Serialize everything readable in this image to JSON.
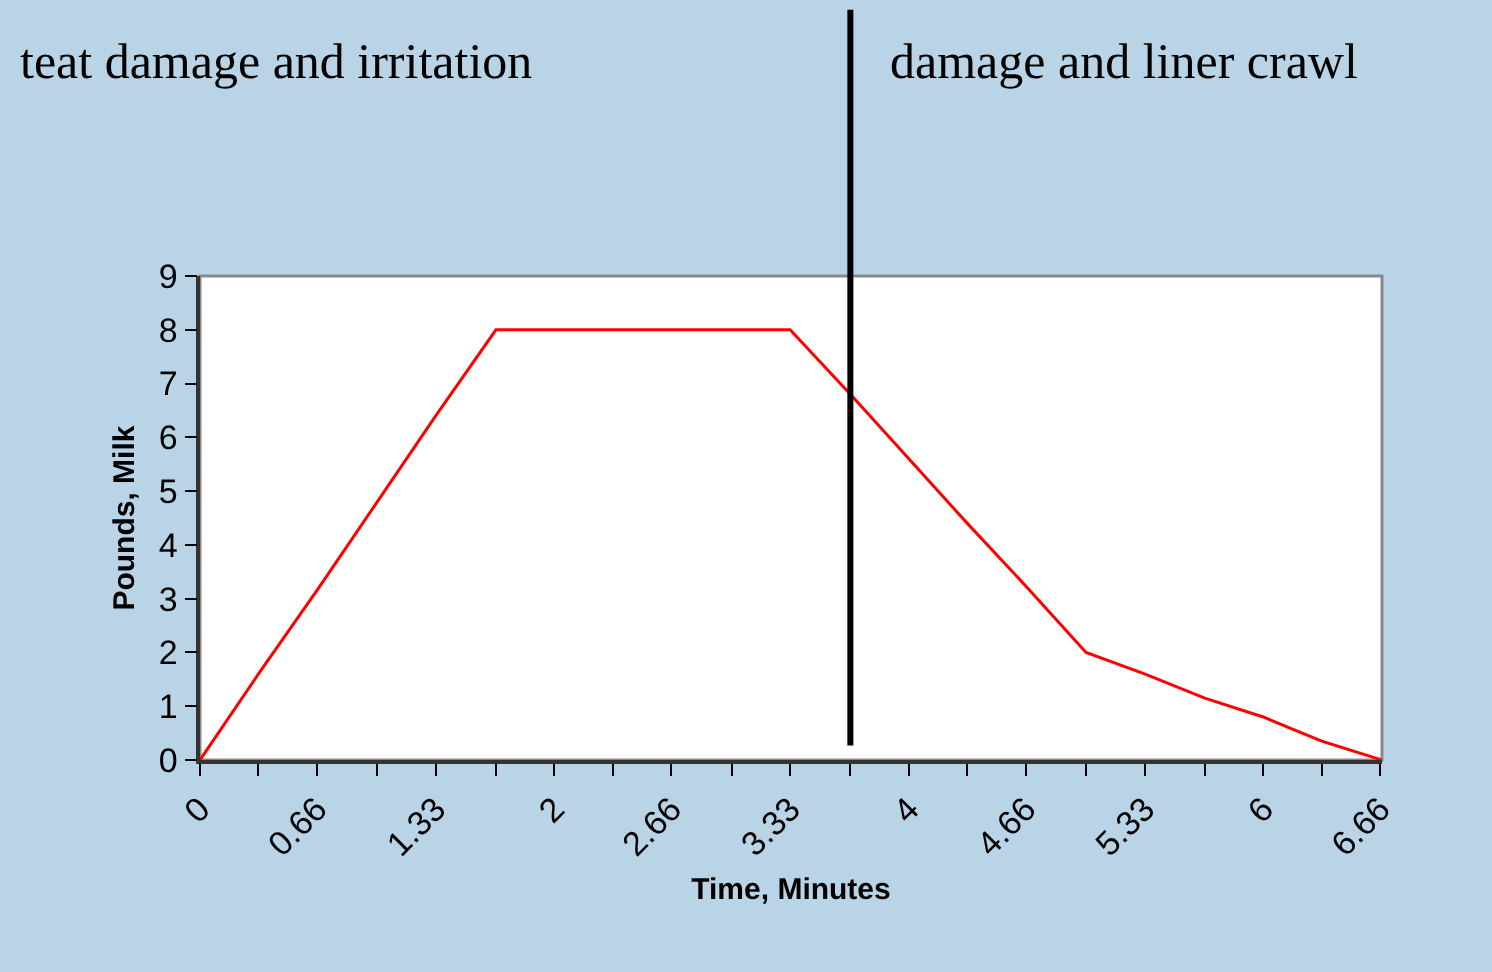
{
  "chart_data": {
    "type": "line",
    "xlabel": "Time, Minutes",
    "ylabel": "Pounds, Milk",
    "x": [
      0,
      0.33,
      0.67,
      1,
      1.33,
      1.67,
      2,
      2.33,
      2.67,
      3,
      3.33,
      3.67,
      4,
      4.33,
      4.67,
      5,
      5.33,
      5.67,
      6,
      6.33,
      6.67
    ],
    "series": [
      {
        "color": "#ff0000",
        "values": [
          0,
          1.6,
          3.2,
          4.8,
          6.4,
          8,
          8,
          8,
          8,
          8,
          8,
          6.8,
          5.6,
          4.4,
          3.2,
          2,
          1.6,
          1.15,
          0.8,
          0.35,
          0
        ]
      }
    ],
    "xlim": [
      0,
      6.67
    ],
    "xticks": [
      0,
      {
        "value": 0.33,
        "label": null
      },
      0.66,
      {
        "value": 1,
        "label": null
      },
      1.33,
      {
        "value": 1.67,
        "label": null
      },
      2,
      {
        "value": 2.33,
        "label": null
      },
      2.66,
      {
        "value": 3,
        "label": null
      },
      3.33,
      {
        "value": 3.67,
        "label": null
      },
      4,
      {
        "value": 4.33,
        "label": null
      },
      4.66,
      {
        "value": 5,
        "label": null
      },
      5.33,
      {
        "value": 5.67,
        "label": null
      },
      6,
      {
        "value": 6.33,
        "label": null
      },
      6.66
    ],
    "ylim": [
      0,
      9
    ],
    "yticks": [
      0,
      1,
      2,
      3,
      4,
      5,
      6,
      7,
      8,
      9
    ],
    "grid": false,
    "marker": "none",
    "line_style": "solid",
    "ref_lines": [
      {
        "axis": "x",
        "value": 3.67,
        "color": "#000000"
      }
    ],
    "annotations": [
      "teat damage and irritation",
      "damage and liner crawl"
    ]
  }
}
